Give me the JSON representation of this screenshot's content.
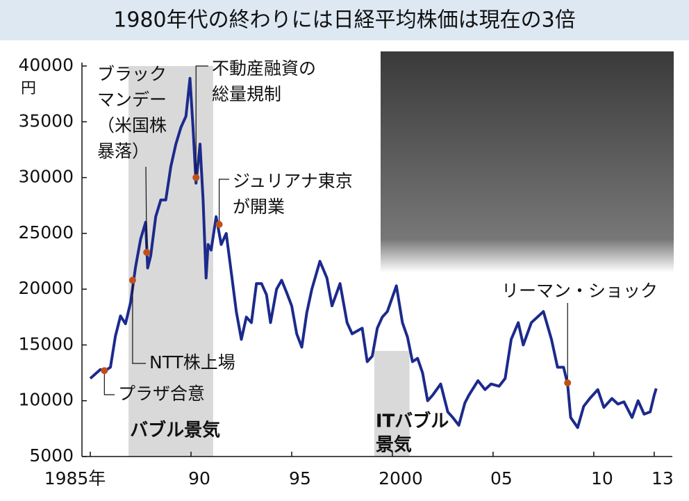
{
  "chart_data": {
    "type": "line",
    "title": "1980年代の終わりには日経平均株価は現在の3倍",
    "y_unit": "円",
    "xlim": [
      1985,
      2013.9
    ],
    "xticks": [
      {
        "value": 1985,
        "label": "1985年"
      },
      {
        "value": 1990,
        "label": "90"
      },
      {
        "value": 1995,
        "label": "95"
      },
      {
        "value": 2000,
        "label": "2000"
      },
      {
        "value": 2005,
        "label": "05"
      },
      {
        "value": 2010,
        "label": "10"
      },
      {
        "value": 2013,
        "label": "13"
      }
    ],
    "ylim": [
      5000,
      40000
    ],
    "yticks": [
      5000,
      10000,
      15000,
      20000,
      25000,
      30000,
      35000,
      40000
    ],
    "series": [
      {
        "color": "#1c2a8c",
        "x": [
          1985.0,
          1985.5,
          1985.75,
          1986.0,
          1986.25,
          1986.5,
          1986.75,
          1987.0,
          1987.25,
          1987.5,
          1987.75,
          1987.85,
          1988.0,
          1988.25,
          1988.5,
          1988.75,
          1989.0,
          1989.25,
          1989.5,
          1989.75,
          1989.95,
          1990.1,
          1990.25,
          1990.45,
          1990.6,
          1990.75,
          1990.85,
          1991.0,
          1991.25,
          1991.5,
          1991.75,
          1992.0,
          1992.25,
          1992.5,
          1992.75,
          1993.0,
          1993.25,
          1993.5,
          1993.75,
          1993.95,
          1994.25,
          1994.5,
          1994.75,
          1995.0,
          1995.25,
          1995.5,
          1995.75,
          1996.0,
          1996.4,
          1996.75,
          1997.0,
          1997.4,
          1997.75,
          1998.0,
          1998.5,
          1998.75,
          1999.0,
          1999.25,
          1999.5,
          1999.75,
          2000.2,
          2000.5,
          2000.75,
          2001.0,
          2001.25,
          2001.5,
          2001.75,
          2002.0,
          2002.4,
          2002.75,
          2003.0,
          2003.3,
          2003.6,
          2003.8,
          2004.25,
          2004.6,
          2004.9,
          2005.3,
          2005.6,
          2005.9,
          2006.25,
          2006.5,
          2006.9,
          2007.2,
          2007.5,
          2007.9,
          2008.2,
          2008.5,
          2008.7,
          2008.85,
          2009.2,
          2009.5,
          2009.8,
          2010.2,
          2010.5,
          2010.9,
          2011.2,
          2011.5,
          2011.9,
          2012.2,
          2012.5,
          2012.8,
          2013.0,
          2013.1
        ],
        "values": [
          12000,
          12800,
          12700,
          13000,
          15800,
          17600,
          16900,
          18800,
          22000,
          24500,
          26000,
          21900,
          23000,
          26500,
          28000,
          28000,
          31000,
          33000,
          34500,
          35500,
          38900,
          34500,
          29500,
          33000,
          28000,
          21000,
          24000,
          23500,
          26500,
          24000,
          25000,
          21500,
          18000,
          15500,
          17500,
          17000,
          20500,
          20500,
          19500,
          17000,
          20000,
          20800,
          19700,
          18500,
          16000,
          14800,
          17900,
          20000,
          22500,
          21000,
          18500,
          20500,
          17000,
          16000,
          16500,
          13500,
          14000,
          16500,
          17500,
          18000,
          20300,
          17000,
          15700,
          13500,
          13800,
          12500,
          10000,
          10500,
          11500,
          9000,
          8500,
          7800,
          9800,
          10500,
          11800,
          11000,
          11500,
          11300,
          12000,
          15500,
          17000,
          15000,
          17000,
          17500,
          18000,
          15500,
          13000,
          13000,
          11500,
          8500,
          7600,
          9500,
          10200,
          11000,
          9400,
          10200,
          9700,
          9900,
          8500,
          10000,
          8800,
          9000,
          10500,
          11100
        ]
      }
    ],
    "events": {
      "color": "#c0501a",
      "items": [
        {
          "label": [
            "プラザ合意"
          ],
          "x": 1985.7,
          "y": 12700
        },
        {
          "label": [
            "NTT株上場"
          ],
          "x": 1987.1,
          "y": 20800
        },
        {
          "label": [
            "ブラック",
            "マンデー",
            "（米国株",
            "暴落）"
          ],
          "x": 1987.8,
          "y": 23300
        },
        {
          "label": [
            "不動産融資の",
            "総量規制"
          ],
          "x": 1990.25,
          "y": 30000
        },
        {
          "label": [
            "ジュリアナ東京",
            "が開業"
          ],
          "x": 1991.4,
          "y": 25800
        },
        {
          "label": [
            "リーマン・ショック"
          ],
          "x": 2008.7,
          "y": 11600
        }
      ]
    },
    "periods": [
      {
        "label": [
          "バブル景気"
        ],
        "start": 1986.9,
        "end": 1991.1
      },
      {
        "label": [
          "ITバブル",
          "景気"
        ],
        "start": 1999.1,
        "end": 2000.85
      }
    ]
  }
}
